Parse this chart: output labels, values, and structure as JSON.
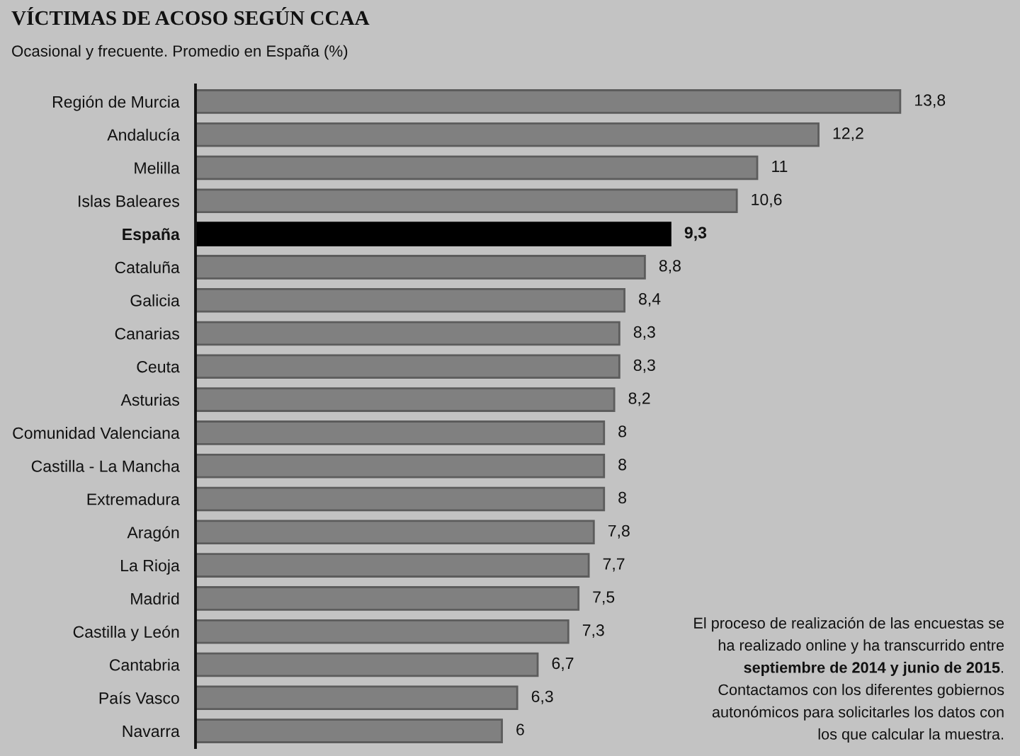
{
  "chart_data": {
    "type": "bar",
    "orientation": "horizontal",
    "title": "VÍCTIMAS DE ACOSO SEGÚN CCAA",
    "subtitle": "Ocasional y frecuente. Promedio en España (%)",
    "categories": [
      "Región de Murcia",
      "Andalucía",
      "Melilla",
      "Islas Baleares",
      "España",
      "Cataluña",
      "Galicia",
      "Canarias",
      "Ceuta",
      "Asturias",
      "Comunidad Valenciana",
      "Castilla - La Mancha",
      "Extremadura",
      "Aragón",
      "La Rioja",
      "Madrid",
      "Castilla y León",
      "Cantabria",
      "País Vasco",
      "Navarra"
    ],
    "values": [
      13.8,
      12.2,
      11,
      10.6,
      9.3,
      8.8,
      8.4,
      8.3,
      8.3,
      8.2,
      8,
      8,
      8,
      7.8,
      7.7,
      7.5,
      7.3,
      6.7,
      6.3,
      6
    ],
    "value_labels": [
      "13,8",
      "12,2",
      "11",
      "10,6",
      "9,3",
      "8,8",
      "8,4",
      "8,3",
      "8,3",
      "8,2",
      "8",
      "8",
      "8",
      "7,8",
      "7,7",
      "7,5",
      "7,3",
      "6,7",
      "6,3",
      "6"
    ],
    "colors": [
      "#808080",
      "#808080",
      "#808080",
      "#808080",
      "#000000",
      "#808080",
      "#808080",
      "#808080",
      "#808080",
      "#808080",
      "#808080",
      "#808080",
      "#808080",
      "#808080",
      "#808080",
      "#808080",
      "#808080",
      "#808080",
      "#808080",
      "#808080"
    ],
    "tick_labels": "y",
    "annotations": [
      "El proceso de realización de las encuestas se\nha realizado online y ha transcurrido entre\n",
      "septiembre de 2014 y junio de 2015",
      ".\nContactamos con los diferentes gobiernos\nautonómicos para solicitarles los datos con\nlos que calcular la muestra."
    ]
  }
}
